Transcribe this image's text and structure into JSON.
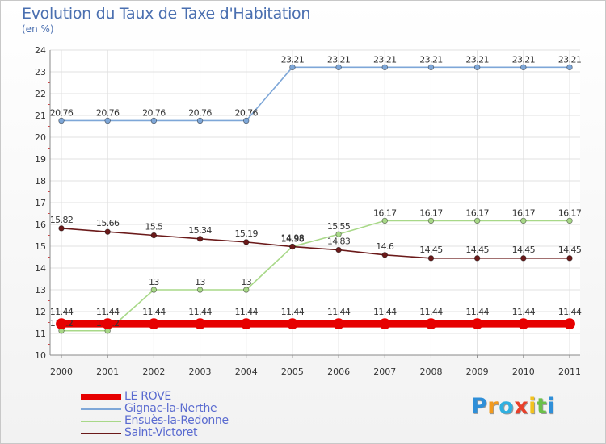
{
  "title": "Evolution du Taux de Taxe d'Habitation",
  "unit": "(en %)",
  "logo": {
    "text": "Proxiti",
    "letters": [
      {
        "ch": "P",
        "color": "#2f8fd8"
      },
      {
        "ch": "r",
        "color": "#f29a1e"
      },
      {
        "ch": "o",
        "color": "#2fb0e0"
      },
      {
        "ch": "x",
        "color": "#e8402a"
      },
      {
        "ch": "i",
        "color": "#f2c21e"
      },
      {
        "ch": "t",
        "color": "#6cc04a"
      },
      {
        "ch": "i",
        "color": "#2f8fd8"
      }
    ]
  },
  "chart_data": {
    "type": "line",
    "title": "Evolution du Taux de Taxe d'Habitation",
    "ylabel": "(en %)",
    "xlabel": "",
    "ylim": [
      10,
      24
    ],
    "yticks": [
      "10",
      "11",
      "12",
      "13",
      "14",
      "15",
      "16",
      "17",
      "18",
      "19",
      "20",
      "21",
      "22",
      "23",
      "24"
    ],
    "categories": [
      "2000",
      "2001",
      "2002",
      "2003",
      "2004",
      "2005",
      "2006",
      "2007",
      "2008",
      "2009",
      "2010",
      "2011"
    ],
    "grid": true,
    "legend_position": "bottom-left",
    "series": [
      {
        "name": "LE ROVE",
        "color": "#e60000",
        "values": [
          11.44,
          11.44,
          11.44,
          11.44,
          11.44,
          11.44,
          11.44,
          11.44,
          11.44,
          11.44,
          11.44,
          11.44
        ],
        "labels": [
          "11.44",
          "11.44",
          "11.44",
          "11.44",
          "11.44",
          "11.44",
          "11.44",
          "11.44",
          "11.44",
          "11.44",
          "11.44",
          "11.44"
        ]
      },
      {
        "name": "Gignac-la-Nerthe",
        "color": "#7ea7d8",
        "values": [
          20.76,
          20.76,
          20.76,
          20.76,
          20.76,
          23.21,
          23.21,
          23.21,
          23.21,
          23.21,
          23.21,
          23.21
        ],
        "labels": [
          "20.76",
          "20.76",
          "20.76",
          "20.76",
          "20.76",
          "23.21",
          "23.21",
          "23.21",
          "23.21",
          "23.21",
          "23.21",
          "23.21"
        ]
      },
      {
        "name": "Ensuès-la-Redonne",
        "color": "#a8d888",
        "values": [
          11.12,
          11.12,
          13,
          13,
          13,
          14.98,
          15.55,
          16.17,
          16.17,
          16.17,
          16.17,
          16.17
        ],
        "labels": [
          "11.12",
          "11.12",
          "13",
          "13",
          "13",
          "14.98",
          "15.55",
          "16.17",
          "16.17",
          "16.17",
          "16.17",
          "16.17"
        ]
      },
      {
        "name": "Saint-Victoret",
        "color": "#6b1a1a",
        "values": [
          15.82,
          15.66,
          15.5,
          15.34,
          15.19,
          14.98,
          14.83,
          14.6,
          14.45,
          14.45,
          14.45,
          14.45
        ],
        "labels": [
          "15.82",
          "15.66",
          "15.5",
          "15.34",
          "15.19",
          "14.98",
          "14.83",
          "14.6",
          "14.45",
          "14.45",
          "14.45",
          "14.45"
        ]
      }
    ]
  }
}
